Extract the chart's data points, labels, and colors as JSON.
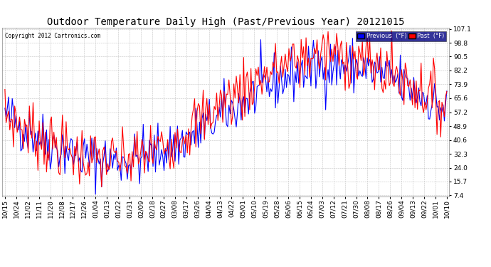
{
  "title": "Outdoor Temperature Daily High (Past/Previous Year) 20121015",
  "copyright": "Copyright 2012 Cartronics.com",
  "ylabel_right_ticks": [
    7.4,
    15.7,
    24.0,
    32.3,
    40.6,
    48.9,
    57.2,
    65.6,
    73.9,
    82.2,
    90.5,
    98.8,
    107.1
  ],
  "x_tick_labels": [
    "10/15",
    "10/24",
    "11/02",
    "11/11",
    "11/20",
    "12/08",
    "12/17",
    "12/26",
    "01/04",
    "01/13",
    "01/22",
    "01/31",
    "02/09",
    "02/18",
    "02/27",
    "03/08",
    "03/17",
    "03/26",
    "04/04",
    "04/13",
    "04/22",
    "05/01",
    "05/10",
    "05/19",
    "05/28",
    "06/06",
    "06/15",
    "06/24",
    "07/03",
    "07/12",
    "07/21",
    "07/30",
    "08/08",
    "08/17",
    "08/26",
    "09/04",
    "09/13",
    "09/22",
    "10/01",
    "10/10"
  ],
  "legend_labels": [
    "Previous  (°F)",
    "Past  (°F)"
  ],
  "legend_colors": [
    "#0000ff",
    "#ff0000"
  ],
  "background_color": "#ffffff",
  "plot_bg_color": "#ffffff",
  "grid_color": "#aaaaaa",
  "title_fontsize": 10,
  "tick_fontsize": 6.5,
  "line_color_blue": "#0000ff",
  "line_color_red": "#ff0000",
  "line_width": 0.8
}
